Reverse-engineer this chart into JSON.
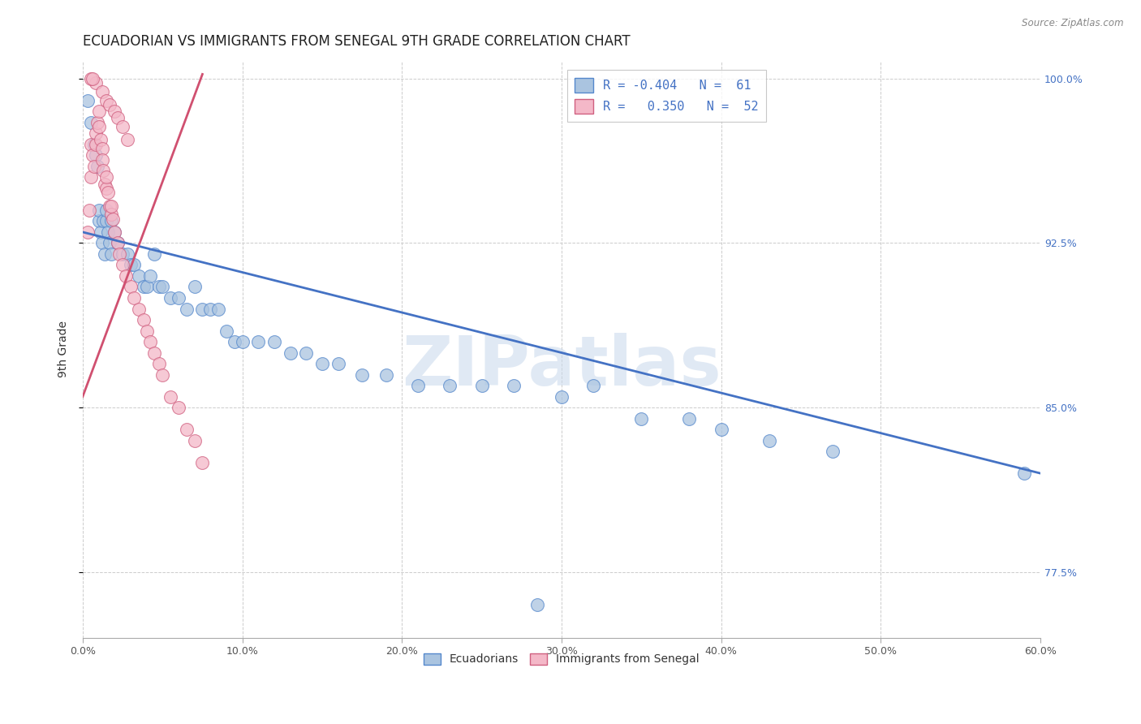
{
  "title": "ECUADORIAN VS IMMIGRANTS FROM SENEGAL 9TH GRADE CORRELATION CHART",
  "source": "Source: ZipAtlas.com",
  "ylabel": "9th Grade",
  "xlim": [
    0.0,
    0.6
  ],
  "ylim": [
    0.745,
    1.008
  ],
  "xtick_labels": [
    "0.0%",
    "10.0%",
    "20.0%",
    "30.0%",
    "40.0%",
    "50.0%",
    "60.0%"
  ],
  "xtick_vals": [
    0.0,
    0.1,
    0.2,
    0.3,
    0.4,
    0.5,
    0.6
  ],
  "ytick_vals": [
    0.775,
    0.85,
    0.925,
    1.0
  ],
  "right_ytick_labels": [
    "100.0%",
    "92.5%",
    "85.0%",
    "77.5%"
  ],
  "right_ytick_vals": [
    1.0,
    0.925,
    0.85,
    0.775
  ],
  "legend_blue_label1": "R = ",
  "legend_blue_r": "-0.404",
  "legend_blue_n": "N =  61",
  "legend_pink_r": "0.350",
  "legend_pink_n": "N =  52",
  "blue_color": "#aac4e0",
  "blue_edge_color": "#5588cc",
  "blue_line_color": "#4472c4",
  "pink_color": "#f4b8c8",
  "pink_edge_color": "#d06080",
  "pink_line_color": "#d05070",
  "blue_scatter_x": [
    0.003,
    0.005,
    0.007,
    0.008,
    0.009,
    0.01,
    0.01,
    0.011,
    0.012,
    0.013,
    0.014,
    0.015,
    0.015,
    0.016,
    0.017,
    0.018,
    0.018,
    0.02,
    0.022,
    0.025,
    0.028,
    0.03,
    0.032,
    0.035,
    0.038,
    0.04,
    0.042,
    0.045,
    0.048,
    0.05,
    0.055,
    0.06,
    0.065,
    0.07,
    0.075,
    0.08,
    0.085,
    0.09,
    0.095,
    0.1,
    0.11,
    0.12,
    0.13,
    0.14,
    0.15,
    0.16,
    0.175,
    0.19,
    0.21,
    0.23,
    0.25,
    0.27,
    0.3,
    0.32,
    0.35,
    0.38,
    0.4,
    0.43,
    0.47,
    0.59,
    0.285
  ],
  "blue_scatter_y": [
    0.99,
    0.98,
    0.97,
    0.965,
    0.96,
    0.935,
    0.94,
    0.93,
    0.925,
    0.935,
    0.92,
    0.935,
    0.94,
    0.93,
    0.925,
    0.92,
    0.935,
    0.93,
    0.925,
    0.92,
    0.92,
    0.915,
    0.915,
    0.91,
    0.905,
    0.905,
    0.91,
    0.92,
    0.905,
    0.905,
    0.9,
    0.9,
    0.895,
    0.905,
    0.895,
    0.895,
    0.895,
    0.885,
    0.88,
    0.88,
    0.88,
    0.88,
    0.875,
    0.875,
    0.87,
    0.87,
    0.865,
    0.865,
    0.86,
    0.86,
    0.86,
    0.86,
    0.855,
    0.86,
    0.845,
    0.845,
    0.84,
    0.835,
    0.83,
    0.82,
    0.76
  ],
  "pink_scatter_x": [
    0.003,
    0.004,
    0.005,
    0.005,
    0.006,
    0.007,
    0.008,
    0.008,
    0.009,
    0.01,
    0.01,
    0.011,
    0.012,
    0.012,
    0.013,
    0.014,
    0.015,
    0.015,
    0.016,
    0.017,
    0.018,
    0.018,
    0.019,
    0.02,
    0.022,
    0.023,
    0.025,
    0.027,
    0.03,
    0.032,
    0.035,
    0.038,
    0.04,
    0.042,
    0.045,
    0.048,
    0.05,
    0.055,
    0.06,
    0.065,
    0.07,
    0.075,
    0.008,
    0.012,
    0.015,
    0.017,
    0.02,
    0.022,
    0.025,
    0.028,
    0.005,
    0.006
  ],
  "pink_scatter_y": [
    0.93,
    0.94,
    0.955,
    0.97,
    0.965,
    0.96,
    0.97,
    0.975,
    0.98,
    0.985,
    0.978,
    0.972,
    0.968,
    0.963,
    0.958,
    0.952,
    0.95,
    0.955,
    0.948,
    0.942,
    0.938,
    0.942,
    0.936,
    0.93,
    0.925,
    0.92,
    0.915,
    0.91,
    0.905,
    0.9,
    0.895,
    0.89,
    0.885,
    0.88,
    0.875,
    0.87,
    0.865,
    0.855,
    0.85,
    0.84,
    0.835,
    0.825,
    0.998,
    0.994,
    0.99,
    0.988,
    0.985,
    0.982,
    0.978,
    0.972,
    1.0,
    1.0
  ],
  "blue_trend_x": [
    0.0,
    0.6
  ],
  "blue_trend_y": [
    0.93,
    0.82
  ],
  "pink_trend_x": [
    0.0,
    0.075
  ],
  "pink_trend_y": [
    0.855,
    1.002
  ],
  "watermark": "ZIPatlas",
  "title_fontsize": 12,
  "label_fontsize": 10,
  "tick_fontsize": 9
}
